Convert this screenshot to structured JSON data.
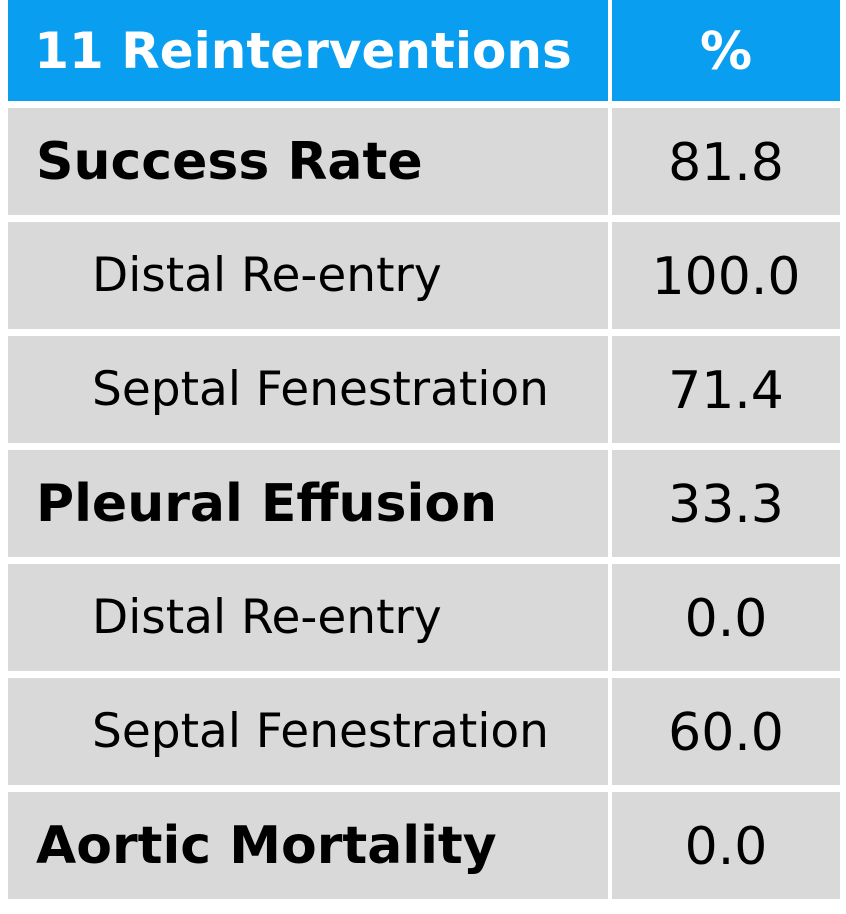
{
  "chart_data": {
    "type": "table",
    "columns": [
      "11 Reinterventions",
      "%"
    ],
    "rows": [
      {
        "label": "Success Rate",
        "value": "81.8",
        "level": "main"
      },
      {
        "label": "Distal Re-entry",
        "value": "100.0",
        "level": "sub"
      },
      {
        "label": "Septal Fenestration",
        "value": "71.4",
        "level": "sub"
      },
      {
        "label": "Pleural Effusion",
        "value": "33.3",
        "level": "main"
      },
      {
        "label": "Distal Re-entry",
        "value": "0.0",
        "level": "sub"
      },
      {
        "label": "Septal Fenestration",
        "value": "60.0",
        "level": "sub"
      },
      {
        "label": "Aortic Mortality",
        "value": "0.0",
        "level": "main"
      }
    ]
  },
  "colors": {
    "header_bg": "#0a9ef0",
    "header_text": "#ffffff",
    "row_bg": "#d9d9d9",
    "row_text": "#000000"
  }
}
